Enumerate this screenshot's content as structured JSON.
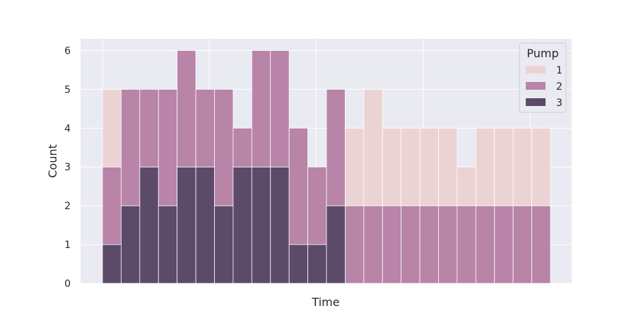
{
  "chart_data": {
    "type": "bar",
    "stacked": true,
    "xlabel": "Time",
    "ylabel": "Count",
    "ylim": [
      0,
      6.3
    ],
    "yticks": [
      0,
      1,
      2,
      3,
      4,
      5,
      6
    ],
    "x_tick_labels_visible": false,
    "grid": true,
    "legend": {
      "title": "Pump",
      "placement": "top-right"
    },
    "bins": 24,
    "series": [
      {
        "name": "3",
        "color": "#5b4a68",
        "values": [
          1,
          2,
          3,
          2,
          3,
          3,
          2,
          3,
          3,
          3,
          1,
          1,
          2,
          0,
          0,
          0,
          0,
          0,
          0,
          0,
          0,
          0,
          0,
          0
        ]
      },
      {
        "name": "2",
        "color": "#b884a8",
        "values": [
          2,
          3,
          2,
          3,
          3,
          2,
          3,
          1,
          3,
          3,
          3,
          2,
          3,
          2,
          2,
          2,
          2,
          2,
          2,
          2,
          2,
          2,
          2,
          2
        ]
      },
      {
        "name": "1",
        "color": "#ecd3d3",
        "values": [
          2,
          0,
          0,
          0,
          0,
          0,
          0,
          0,
          0,
          0,
          0,
          0,
          0,
          2,
          3,
          2,
          2,
          2,
          2,
          1,
          2,
          2,
          2,
          2
        ]
      }
    ]
  }
}
